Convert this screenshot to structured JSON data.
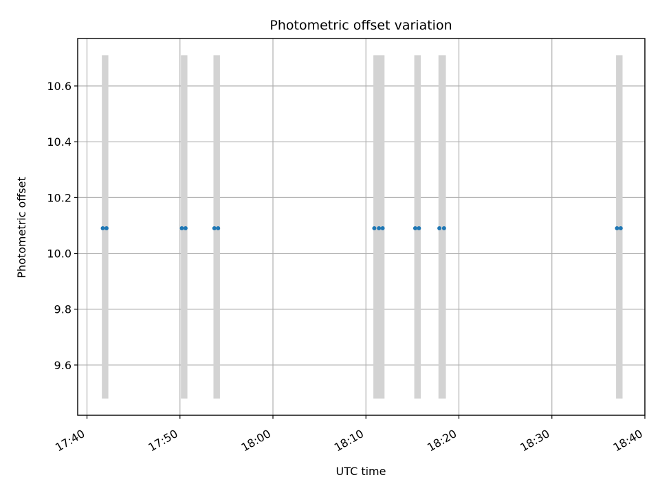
{
  "chart_data": {
    "type": "scatter",
    "title": "Photometric offset variation",
    "xlabel": "UTC time",
    "ylabel": "Photometric offset",
    "x_axis_type": "time",
    "xlim": [
      "17:39",
      "18:40"
    ],
    "ylim": [
      9.42,
      10.77
    ],
    "x_ticks": [
      "17:40",
      "17:50",
      "18:00",
      "18:10",
      "18:20",
      "18:30",
      "18:40"
    ],
    "y_ticks": [
      9.6,
      9.8,
      10.0,
      10.2,
      10.4,
      10.6
    ],
    "y_tick_labels": [
      "9.6",
      "9.8",
      "10.0",
      "10.2",
      "10.4",
      "10.6"
    ],
    "grid": true,
    "colors": {
      "points": "#1f77b4",
      "bands": "#d3d3d3",
      "grid": "#b0b0b0"
    },
    "bands": [
      {
        "start": "17:41:36",
        "end": "17:42:18",
        "low": 9.48,
        "high": 10.71
      },
      {
        "start": "17:50:06",
        "end": "17:50:48",
        "low": 9.48,
        "high": 10.71
      },
      {
        "start": "17:53:36",
        "end": "17:54:18",
        "low": 9.48,
        "high": 10.71
      },
      {
        "start": "18:10:48",
        "end": "18:12:00",
        "low": 9.48,
        "high": 10.71
      },
      {
        "start": "18:15:12",
        "end": "18:15:54",
        "low": 9.48,
        "high": 10.71
      },
      {
        "start": "18:17:48",
        "end": "18:18:36",
        "low": 9.48,
        "high": 10.71
      },
      {
        "start": "18:36:54",
        "end": "18:37:36",
        "low": 9.48,
        "high": 10.71
      }
    ],
    "series": [
      {
        "x": [
          "17:41:42",
          "17:42:06",
          "17:50:12",
          "17:50:36",
          "17:53:42",
          "17:54:06",
          "18:10:54",
          "18:11:24",
          "18:11:48",
          "18:15:18",
          "18:15:42",
          "18:17:54",
          "18:18:24",
          "18:37:00",
          "18:37:24"
        ],
        "y": [
          10.09,
          10.09,
          10.09,
          10.09,
          10.09,
          10.09,
          10.09,
          10.09,
          10.09,
          10.09,
          10.09,
          10.09,
          10.09,
          10.09,
          10.09
        ]
      }
    ]
  }
}
